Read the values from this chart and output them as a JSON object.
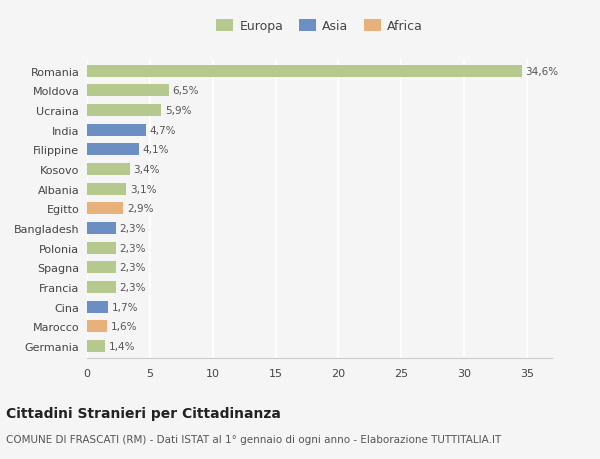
{
  "countries": [
    "Romania",
    "Moldova",
    "Ucraina",
    "India",
    "Filippine",
    "Kosovo",
    "Albania",
    "Egitto",
    "Bangladesh",
    "Polonia",
    "Spagna",
    "Francia",
    "Cina",
    "Marocco",
    "Germania"
  ],
  "values": [
    34.6,
    6.5,
    5.9,
    4.7,
    4.1,
    3.4,
    3.1,
    2.9,
    2.3,
    2.3,
    2.3,
    2.3,
    1.7,
    1.6,
    1.4
  ],
  "labels": [
    "34,6%",
    "6,5%",
    "5,9%",
    "4,7%",
    "4,1%",
    "3,4%",
    "3,1%",
    "2,9%",
    "2,3%",
    "2,3%",
    "2,3%",
    "2,3%",
    "1,7%",
    "1,6%",
    "1,4%"
  ],
  "continents": [
    "Europa",
    "Europa",
    "Europa",
    "Asia",
    "Asia",
    "Europa",
    "Europa",
    "Africa",
    "Asia",
    "Europa",
    "Europa",
    "Europa",
    "Asia",
    "Africa",
    "Europa"
  ],
  "continent_colors": {
    "Europa": "#b5c98e",
    "Asia": "#6b8fc2",
    "Africa": "#e8b07a"
  },
  "legend_items": [
    "Europa",
    "Asia",
    "Africa"
  ],
  "legend_colors": [
    "#b5c98e",
    "#6b8fc2",
    "#e8b07a"
  ],
  "title": "Cittadini Stranieri per Cittadinanza",
  "subtitle": "COMUNE DI FRASCATI (RM) - Dati ISTAT al 1° gennaio di ogni anno - Elaborazione TUTTITALIA.IT",
  "xlim": [
    0,
    37
  ],
  "xticks": [
    0,
    5,
    10,
    15,
    20,
    25,
    30,
    35
  ],
  "background_color": "#f5f5f5",
  "grid_color": "#ffffff",
  "bar_height": 0.62,
  "title_fontsize": 10,
  "subtitle_fontsize": 7.5,
  "label_fontsize": 7.5,
  "tick_fontsize": 8,
  "legend_fontsize": 9
}
